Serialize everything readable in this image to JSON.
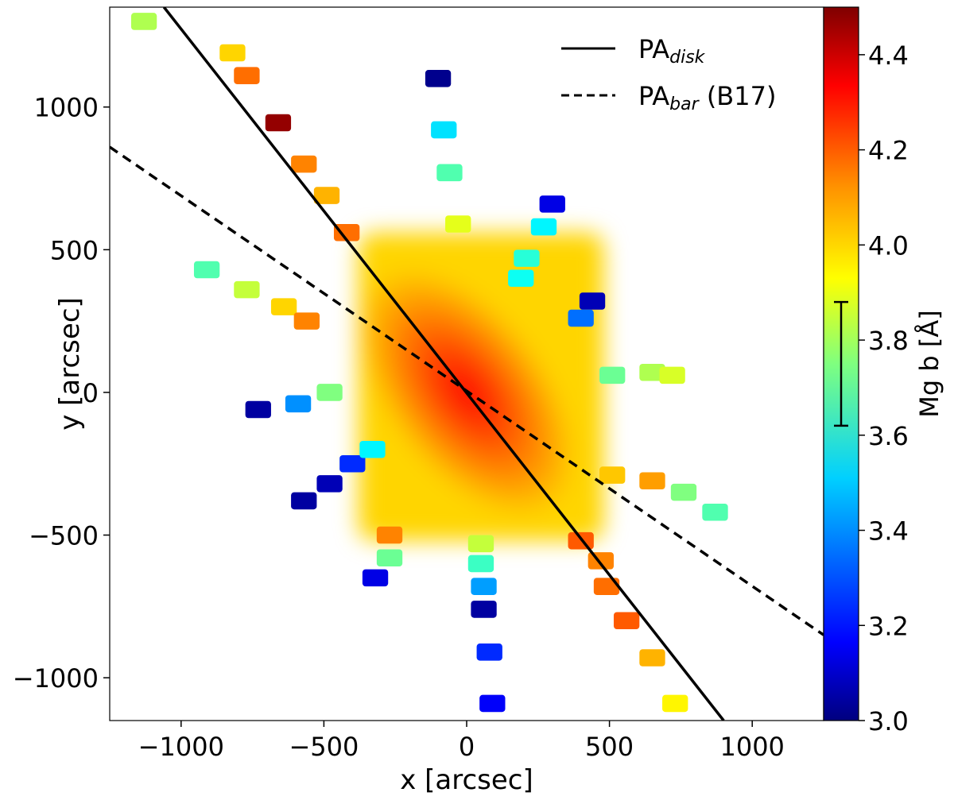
{
  "chart_data": {
    "type": "scatter",
    "title": "",
    "xlabel": "x [arcsec]",
    "ylabel": "y [arcsec]",
    "xlim": [
      -1250,
      1250
    ],
    "ylim": [
      -1150,
      1350
    ],
    "xticks": [
      -1000,
      -500,
      0,
      500,
      1000
    ],
    "yticks": [
      -1000,
      -500,
      0,
      500,
      1000
    ],
    "xtick_labels": [
      "−1000",
      "−500",
      "0",
      "500",
      "1000"
    ],
    "ytick_labels": [
      "−1000",
      "−500",
      "0",
      "500",
      "1000"
    ],
    "colorbar": {
      "label": "Mg b [Å]",
      "range": [
        3.0,
        4.5
      ],
      "colormap": "jet",
      "ticks": [
        3.0,
        3.2,
        3.4,
        3.6,
        3.8,
        4.0,
        4.2,
        4.4
      ],
      "tick_labels": [
        "3.0",
        "3.2",
        "3.4",
        "3.6",
        "3.8",
        "4.0",
        "4.2",
        "4.4"
      ],
      "error_bar": [
        3.62,
        3.88
      ]
    },
    "lines": [
      {
        "name": "PA_disk",
        "legend_main": "PA",
        "legend_sub": "disk",
        "legend_suffix": "",
        "style": "solid",
        "color": "#000000",
        "x": [
          -1060,
          900
        ],
        "y": [
          1350,
          -1150
        ]
      },
      {
        "name": "PA_bar (B17)",
        "legend_main": "PA",
        "legend_sub": "bar",
        "legend_suffix": " (B17)",
        "style": "dashed",
        "color": "#000000",
        "x": [
          -1250,
          1250
        ],
        "y": [
          860,
          -850
        ]
      }
    ],
    "central_map": {
      "center": [
        0,
        0
      ],
      "x_range": [
        -380,
        480
      ],
      "y_range": [
        -520,
        560
      ],
      "center_value": 4.3,
      "edge_value": 4.0
    },
    "pointings": [
      {
        "x": -1130,
        "y": 1300,
        "value": 3.82
      },
      {
        "x": -820,
        "y": 1190,
        "value": 4.0
      },
      {
        "x": -770,
        "y": 1110,
        "value": 4.15
      },
      {
        "x": -660,
        "y": 945,
        "value": 4.47
      },
      {
        "x": -570,
        "y": 800,
        "value": 4.12
      },
      {
        "x": -490,
        "y": 690,
        "value": 4.05
      },
      {
        "x": -420,
        "y": 560,
        "value": 4.15
      },
      {
        "x": -100,
        "y": 1100,
        "value": 3.02
      },
      {
        "x": -80,
        "y": 920,
        "value": 3.52
      },
      {
        "x": -60,
        "y": 770,
        "value": 3.68
      },
      {
        "x": -30,
        "y": 590,
        "value": 3.9
      },
      {
        "x": 300,
        "y": 660,
        "value": 3.15
      },
      {
        "x": 270,
        "y": 580,
        "value": 3.55
      },
      {
        "x": 210,
        "y": 470,
        "value": 3.62
      },
      {
        "x": 190,
        "y": 400,
        "value": 3.58
      },
      {
        "x": 440,
        "y": 320,
        "value": 3.08
      },
      {
        "x": 400,
        "y": 260,
        "value": 3.35
      },
      {
        "x": -910,
        "y": 430,
        "value": 3.68
      },
      {
        "x": -770,
        "y": 360,
        "value": 3.85
      },
      {
        "x": -640,
        "y": 300,
        "value": 4.0
      },
      {
        "x": -560,
        "y": 250,
        "value": 4.12
      },
      {
        "x": -730,
        "y": -60,
        "value": 3.05
      },
      {
        "x": -590,
        "y": -40,
        "value": 3.4
      },
      {
        "x": -480,
        "y": 0,
        "value": 3.75
      },
      {
        "x": 510,
        "y": 60,
        "value": 3.72
      },
      {
        "x": 650,
        "y": 70,
        "value": 3.82
      },
      {
        "x": 720,
        "y": 60,
        "value": 3.88
      },
      {
        "x": -570,
        "y": -380,
        "value": 3.05
      },
      {
        "x": -480,
        "y": -320,
        "value": 3.08
      },
      {
        "x": -400,
        "y": -250,
        "value": 3.25
      },
      {
        "x": -330,
        "y": -200,
        "value": 3.55
      },
      {
        "x": 510,
        "y": -290,
        "value": 4.02
      },
      {
        "x": 650,
        "y": -310,
        "value": 4.08
      },
      {
        "x": 760,
        "y": -350,
        "value": 3.75
      },
      {
        "x": 870,
        "y": -420,
        "value": 3.68
      },
      {
        "x": -270,
        "y": -500,
        "value": 4.12
      },
      {
        "x": -270,
        "y": -580,
        "value": 3.72
      },
      {
        "x": -320,
        "y": -650,
        "value": 3.15
      },
      {
        "x": 50,
        "y": -530,
        "value": 3.85
      },
      {
        "x": 50,
        "y": -600,
        "value": 3.65
      },
      {
        "x": 60,
        "y": -680,
        "value": 3.42
      },
      {
        "x": 60,
        "y": -760,
        "value": 3.05
      },
      {
        "x": 80,
        "y": -910,
        "value": 3.25
      },
      {
        "x": 90,
        "y": -1090,
        "value": 3.18
      },
      {
        "x": 400,
        "y": -520,
        "value": 4.18
      },
      {
        "x": 470,
        "y": -590,
        "value": 4.12
      },
      {
        "x": 490,
        "y": -680,
        "value": 4.15
      },
      {
        "x": 560,
        "y": -800,
        "value": 4.18
      },
      {
        "x": 650,
        "y": -930,
        "value": 4.05
      },
      {
        "x": 730,
        "y": -1090,
        "value": 3.95
      }
    ]
  }
}
